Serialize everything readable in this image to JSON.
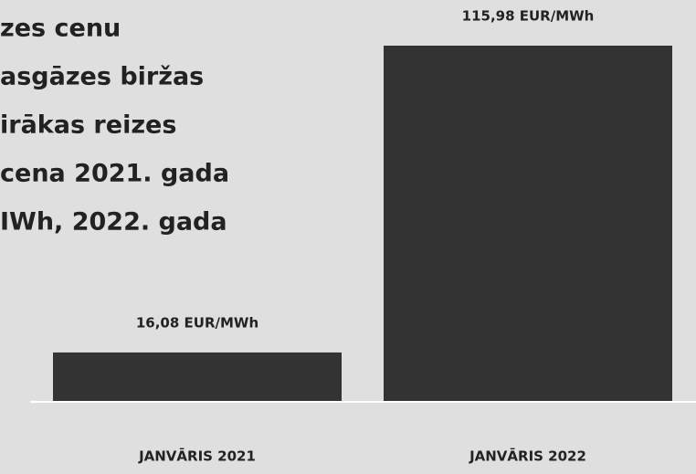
{
  "chart_data": {
    "type": "bar",
    "title_lines": [
      "zes cenu",
      "asgāzes biržas",
      "irākas reizes",
      "cena 2021. gada",
      "IWh, 2022. gada"
    ],
    "categories": [
      "JANVĀRIS 2021",
      "JANVĀRIS 2022"
    ],
    "values": [
      16.08,
      115.98
    ],
    "value_labels": [
      "16,08 EUR/MWh",
      "115,98 EUR/MWh"
    ],
    "color": "#333333"
  }
}
